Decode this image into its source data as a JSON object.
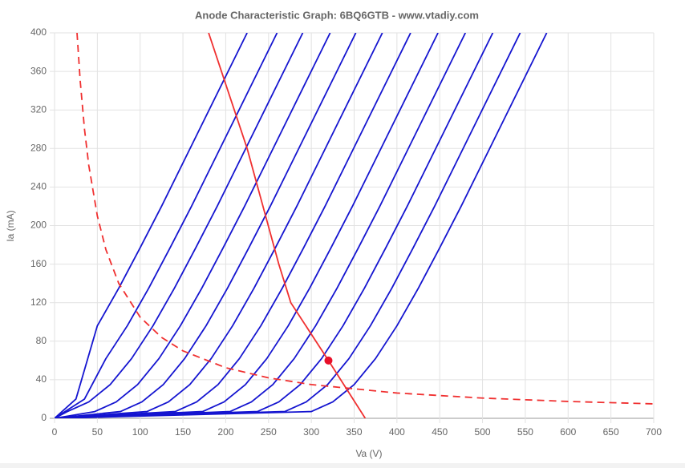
{
  "chart_data": {
    "type": "line",
    "title": "Anode Characteristic Graph: 6BQ6GTB - www.vtadiy.com",
    "x_label": "Va (V)",
    "y_label": "Ia (mA)",
    "xlim": [
      0,
      700
    ],
    "ylim": [
      0,
      400
    ],
    "xticks": [
      0,
      50,
      100,
      150,
      200,
      250,
      300,
      350,
      400,
      450,
      500,
      550,
      600,
      650,
      700
    ],
    "yticks": [
      0,
      40,
      80,
      120,
      160,
      200,
      240,
      280,
      320,
      360,
      400
    ],
    "grid": true,
    "series": [
      {
        "color": "#1515d0",
        "x": [
          0,
          25,
          50,
          75,
          100,
          125,
          150,
          175,
          200,
          225
        ],
        "values": [
          0,
          20,
          96,
          135,
          177,
          220,
          265,
          310,
          355,
          400
        ]
      },
      {
        "color": "#1515d0",
        "x": [
          0,
          35,
          60,
          85,
          110,
          135,
          160,
          185,
          210,
          235,
          260
        ],
        "values": [
          0,
          20,
          62,
          96,
          135,
          177,
          220,
          265,
          310,
          355,
          400
        ]
      },
      {
        "color": "#1515d0",
        "x": [
          0,
          15,
          40,
          65,
          90,
          115,
          140,
          165,
          190,
          215,
          240,
          265,
          290
        ],
        "values": [
          0,
          7,
          17,
          35,
          62,
          96,
          135,
          177,
          220,
          265,
          310,
          355,
          400
        ]
      },
      {
        "color": "#1515d0",
        "x": [
          0,
          47,
          72,
          97,
          122,
          147,
          172,
          197,
          222,
          247,
          272,
          297,
          322
        ],
        "values": [
          0,
          7,
          17,
          35,
          62,
          96,
          135,
          177,
          220,
          265,
          310,
          355,
          400
        ]
      },
      {
        "color": "#1515d0",
        "x": [
          0,
          77,
          102,
          127,
          152,
          177,
          202,
          227,
          252,
          277,
          302,
          327,
          352
        ],
        "values": [
          0,
          7,
          17,
          35,
          62,
          96,
          135,
          177,
          220,
          265,
          310,
          355,
          400
        ]
      },
      {
        "color": "#1515d0",
        "x": [
          0,
          108,
          133,
          158,
          183,
          208,
          233,
          258,
          283,
          308,
          333,
          358,
          383
        ],
        "values": [
          0,
          7,
          17,
          35,
          62,
          96,
          135,
          177,
          220,
          265,
          310,
          355,
          400
        ]
      },
      {
        "color": "#1515d0",
        "x": [
          0,
          141,
          166,
          191,
          216,
          241,
          266,
          291,
          316,
          341,
          366,
          391,
          416
        ],
        "values": [
          0,
          7,
          17,
          35,
          62,
          96,
          135,
          177,
          220,
          265,
          310,
          355,
          400
        ]
      },
      {
        "color": "#1515d0",
        "x": [
          0,
          173,
          198,
          223,
          248,
          273,
          298,
          323,
          348,
          373,
          398,
          423,
          448
        ],
        "values": [
          0,
          7,
          17,
          35,
          62,
          96,
          135,
          177,
          220,
          265,
          310,
          355,
          400
        ]
      },
      {
        "color": "#1515d0",
        "x": [
          0,
          205,
          230,
          255,
          280,
          305,
          330,
          355,
          380,
          405,
          430,
          455,
          480
        ],
        "values": [
          0,
          7,
          17,
          35,
          62,
          96,
          135,
          177,
          220,
          265,
          310,
          355,
          400
        ]
      },
      {
        "color": "#1515d0",
        "x": [
          0,
          237,
          262,
          287,
          312,
          337,
          362,
          387,
          412,
          437,
          462,
          487,
          512
        ],
        "values": [
          0,
          7,
          17,
          35,
          62,
          96,
          135,
          177,
          220,
          265,
          310,
          355,
          400
        ]
      },
      {
        "color": "#1515d0",
        "x": [
          0,
          269,
          294,
          319,
          344,
          369,
          394,
          419,
          444,
          469,
          494,
          519,
          544
        ],
        "values": [
          0,
          7,
          17,
          35,
          62,
          96,
          135,
          177,
          220,
          265,
          310,
          355,
          400
        ]
      },
      {
        "color": "#1515d0",
        "x": [
          0,
          300,
          325,
          350,
          375,
          400,
          425,
          450,
          475,
          500,
          525,
          550,
          575
        ],
        "values": [
          0,
          7,
          17,
          35,
          62,
          96,
          135,
          177,
          220,
          265,
          310,
          355,
          400
        ]
      },
      {
        "color": "#f03030",
        "x": [
          180,
          225,
          262,
          276,
          320,
          363
        ],
        "values": [
          400,
          280,
          160,
          120,
          60,
          0
        ]
      },
      {
        "color": "#f03030",
        "dashed": true,
        "x": [
          26.25,
          30,
          35,
          40,
          50,
          60,
          75,
          100,
          125,
          150,
          200,
          250,
          300,
          400,
          500,
          600,
          700
        ],
        "values": [
          400,
          350,
          300,
          262.5,
          210,
          175,
          140,
          105,
          84,
          70,
          52.5,
          42,
          35,
          26.25,
          21,
          17.5,
          15
        ]
      }
    ],
    "points": [
      {
        "x": 320,
        "y": 60,
        "color": "#e8102a"
      }
    ]
  }
}
